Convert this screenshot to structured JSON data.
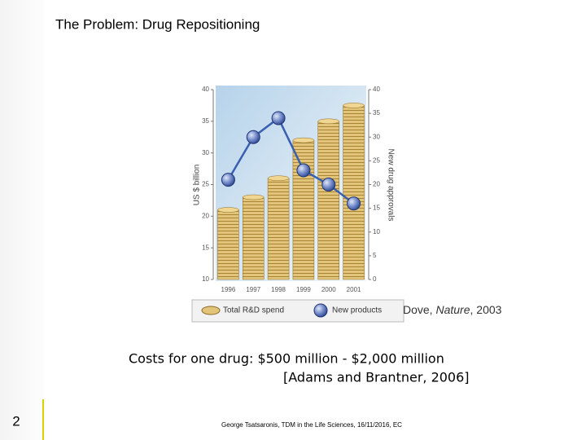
{
  "title": "The Problem: Drug Repositioning",
  "chart_data": {
    "type": "bar",
    "categories": [
      "1996",
      "1997",
      "1998",
      "1999",
      "2000",
      "2001"
    ],
    "ylabel": "US $ billion",
    "y2label": "New drug approvals",
    "ylim": [
      10,
      40
    ],
    "yticks": [
      10,
      15,
      20,
      25,
      30,
      35,
      40
    ],
    "y2lim": [
      0,
      40
    ],
    "y2ticks": [
      0,
      5,
      10,
      15,
      20,
      25,
      30,
      35,
      40
    ],
    "series": [
      {
        "name": "Total R&D spend",
        "type": "bar",
        "color": "#d9b45a",
        "values": [
          21,
          23,
          26,
          32,
          35,
          37.5
        ]
      },
      {
        "name": "New products",
        "type": "line",
        "axis": "y2",
        "color": "#3a5fb0",
        "values": [
          21,
          30,
          34,
          23,
          20,
          16
        ]
      }
    ],
    "legend": "bottom"
  },
  "citation": [
    "Dove, ",
    "Nature",
    ", 2003"
  ],
  "costs": [
    "Costs for one drug: $500 million - $2,000 million",
    "[Adams and Brantner, 2006]"
  ],
  "footer": "George Tsatsaronis, TDM in the Life Sciences, 16/11/2016, EC",
  "page_number": "2"
}
